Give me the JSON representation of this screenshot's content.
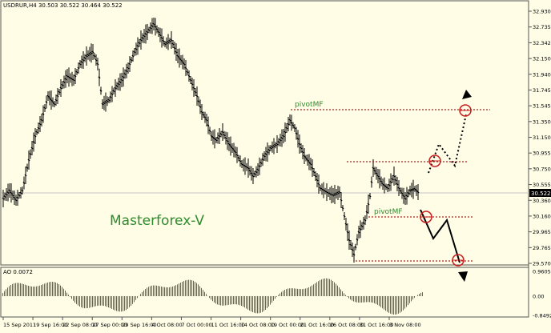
{
  "window": {
    "symbol_title": "USDRUR,H4 30.503 30.522 30.464 30.522"
  },
  "price_axis": {
    "ticks": [
      "32.930",
      "32.735",
      "32.342",
      "32.150",
      "31.940",
      "31.745",
      "31.545",
      "31.350",
      "31.150",
      "30.955",
      "30.750",
      "30.555",
      "30.360",
      "30.160",
      "29.965",
      "29.765",
      "29.570"
    ],
    "current_price": "30.522"
  },
  "time_axis": {
    "ticks": [
      "15 Sep 2011",
      "19 Sep 16:00",
      "22 Sep 08:00",
      "27 Sep 00:00",
      "29 Sep 16:00",
      "4 Oct 08:00",
      "7 Oct 00:00",
      "11 Oct 16:00",
      "14 Oct 08:00",
      "19 Oct 00:00",
      "21 Oct 16:00",
      "26 Oct 08:00",
      "31 Oct 16:00",
      "3 Nov 08:00"
    ]
  },
  "annotations": {
    "pivot_label_upper": "pivotMF",
    "pivot_label_lower": "pivotMF",
    "watermark": "Masterforex-V"
  },
  "indicator": {
    "title": "AO 0.0072",
    "ticks": [
      "0.9605",
      "0.00",
      "-0.8492"
    ]
  },
  "colors": {
    "background": "#fffde6",
    "candles": "#000000",
    "pivot_level": "#b22222",
    "pivot_text": "#2e8b2e",
    "watermark": "#2e8b2e",
    "ao_up": "#2e8b2e",
    "ao_down": "#c83232",
    "current_price_box": "#000000"
  }
}
